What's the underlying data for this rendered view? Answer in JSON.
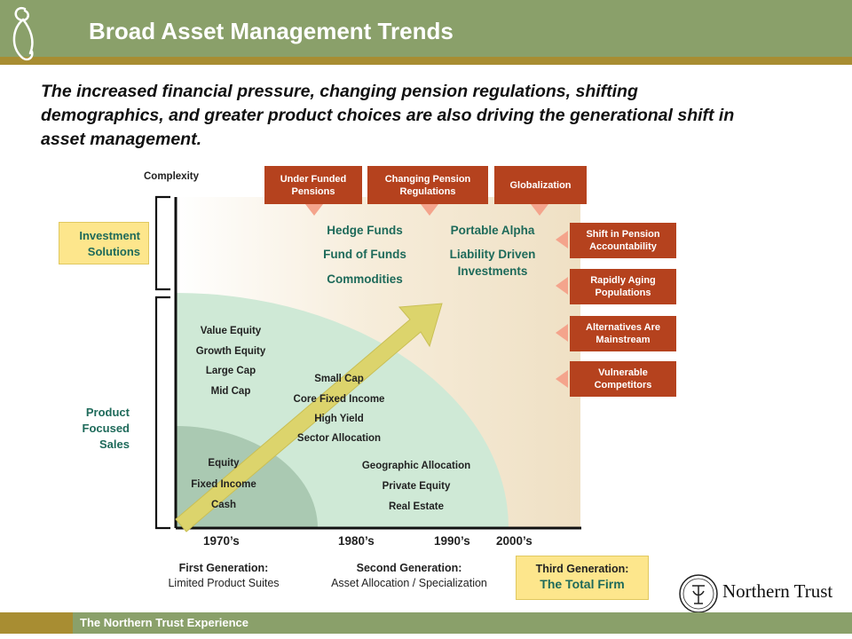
{
  "header": {
    "title": "Broad Asset Management Trends"
  },
  "intro": "The increased financial pressure, changing pension regulations, shifting demographics, and greater product choices are also driving the generational shift in asset management.",
  "diagram": {
    "y_axis_label": "Complexity",
    "left_labels": {
      "investment": "Investment Solutions",
      "product": "Product Focused Sales"
    },
    "top_drivers": [
      "Under Funded Pensions",
      "Changing Pension Regulations",
      "Globalization"
    ],
    "side_drivers": [
      "Shift in Pension Accountability",
      "Rapidly Aging Populations",
      "Alternatives Are Mainstream",
      "Vulnerable Competitors"
    ],
    "region_1970s": [
      "Equity",
      "Fixed Income",
      "Cash"
    ],
    "region_value": [
      "Value Equity",
      "Growth Equity",
      "Large Cap",
      "Mid Cap"
    ],
    "region_smallcap": [
      "Small Cap",
      "Core Fixed Income",
      "High Yield",
      "Sector Allocation"
    ],
    "region_1990s": [
      "Geographic Allocation",
      "Private Equity",
      "Real Estate"
    ],
    "solutions_left": [
      "Hedge Funds",
      "Fund of Funds",
      "Commodities"
    ],
    "solutions_right": [
      "Portable Alpha",
      "Liability Driven Investments"
    ],
    "decades": [
      "1970’s",
      "1980’s",
      "1990’s",
      "2000’s"
    ],
    "generations": [
      {
        "title": "First Generation:",
        "subtitle": "Limited Product Suites"
      },
      {
        "title": "Second Generation:",
        "subtitle": "Asset Allocation / Specialization"
      },
      {
        "title": "Third Generation:",
        "subtitle": "The Total Firm"
      }
    ]
  },
  "logo": {
    "text": "Northern Trust"
  },
  "footer": {
    "text": "The Northern Trust Experience"
  },
  "colors": {
    "header_green": "#8aa06a",
    "gold": "#a88d32",
    "driver_red": "#b5421e",
    "teal_text": "#1e6a5a",
    "third_gen_fill": "#fde68c"
  }
}
